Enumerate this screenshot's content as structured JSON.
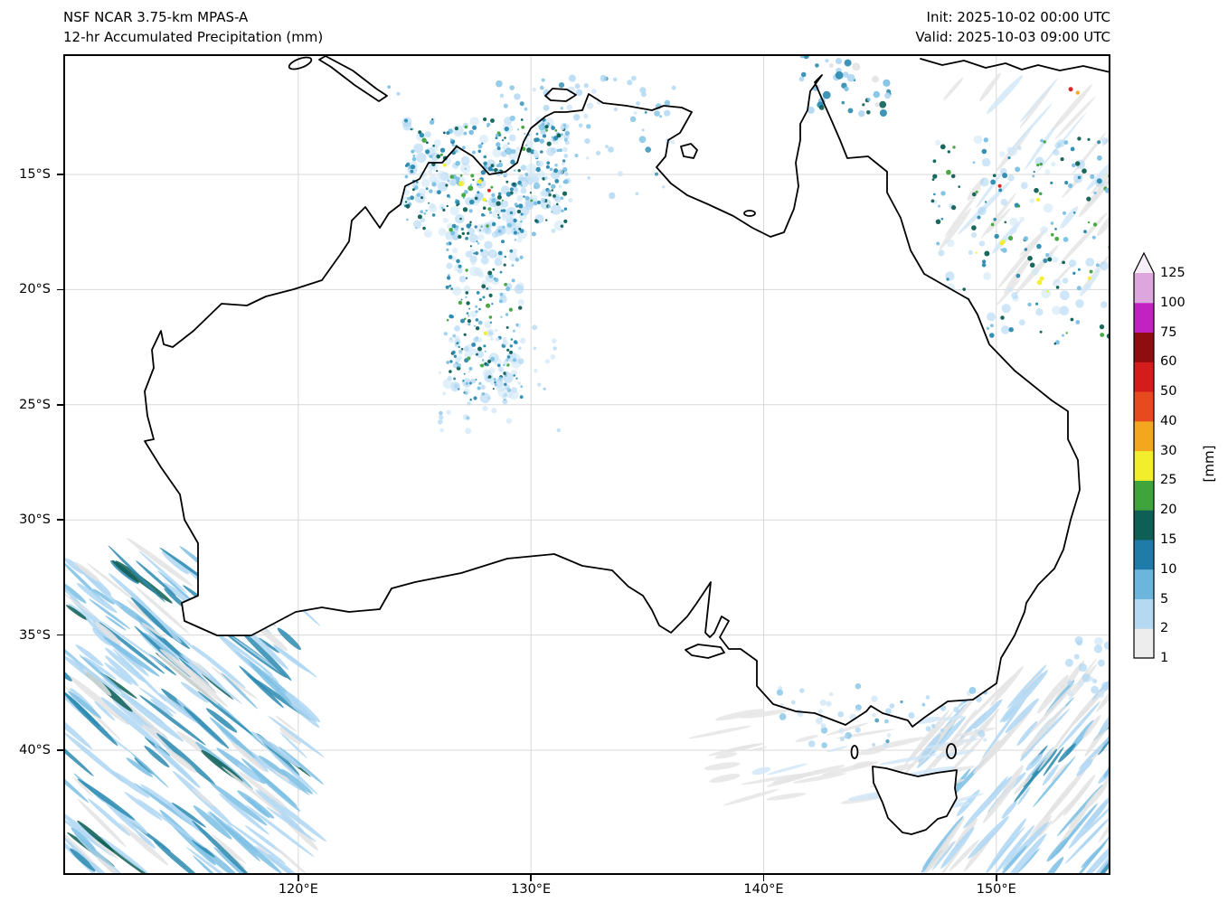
{
  "header": {
    "model": "NSF NCAR 3.75-km MPAS-A",
    "product": "12-hr Accumulated Precipitation (mm)",
    "init": "Init: 2025-10-02 00:00 UTC",
    "valid": "Valid: 2025-10-03 09:00 UTC"
  },
  "axes": {
    "x_ticks": [
      "120°E",
      "130°E",
      "140°E",
      "150°E"
    ],
    "y_ticks": [
      "15°S",
      "20°S",
      "25°S",
      "30°S",
      "35°S",
      "40°S"
    ]
  },
  "colorbar": {
    "unit": "[mm]",
    "levels": [
      1,
      2,
      5,
      10,
      15,
      20,
      25,
      30,
      40,
      50,
      60,
      75,
      100,
      125
    ],
    "colors": [
      "#ededed",
      "#b5d9f0",
      "#6cb5dd",
      "#1f7ba8",
      "#0e5f55",
      "#40a43c",
      "#f2ee2c",
      "#f3a71e",
      "#e84a20",
      "#d41c1c",
      "#8f0c10",
      "#c322c3",
      "#dda6dd"
    ],
    "extend_color": "#f5eef7"
  },
  "chart_data": {
    "type": "heatmap",
    "title": "12-hr Accumulated Precipitation (mm)",
    "model": "NSF NCAR 3.75-km MPAS-A",
    "init_time": "2025-10-02 00:00 UTC",
    "valid_time": "2025-10-03 09:00 UTC",
    "region": "Australia",
    "lon_range_deg_east": [
      109.9,
      154.9
    ],
    "lat_range_deg_south": [
      9.8,
      45.2
    ],
    "x_ticks_deg_east": [
      120,
      130,
      140,
      150
    ],
    "y_ticks_deg_south": [
      15,
      20,
      25,
      30,
      35,
      40
    ],
    "unit": "mm",
    "colormap_levels_mm": [
      1,
      2,
      5,
      10,
      15,
      20,
      25,
      30,
      40,
      50,
      60,
      75,
      100,
      125
    ],
    "colormap_colors": [
      "#ededed",
      "#b5d9f0",
      "#6cb5dd",
      "#1f7ba8",
      "#0e5f55",
      "#40a43c",
      "#f2ee2c",
      "#f3a71e",
      "#e84a20",
      "#d41c1c",
      "#8f0c10",
      "#c322c3",
      "#dda6dd"
    ],
    "extend_above_color": "#f5eef7",
    "grid": true,
    "precip_features": [
      {
        "area": "Southern Ocean southwest of WA",
        "lon": [
          110,
          120
        ],
        "lat": [
          -45,
          -32
        ],
        "character": "SW-NE oriented frontal rain bands",
        "max_mm": 15
      },
      {
        "area": "Kimberley and western Top End",
        "lon": [
          124.5,
          131.5
        ],
        "lat": [
          -12.5,
          -17.5
        ],
        "character": "scattered convective cells, isolated 25-50 mm cores",
        "max_mm": 50
      },
      {
        "area": "Central NT band near 128E",
        "lon": [
          126.5,
          129.5
        ],
        "lat": [
          -17,
          -25
        ],
        "character": "north-south band of scattered light showers",
        "max_mm": 25
      },
      {
        "area": "Arafura Sea / Top End coast",
        "lon": [
          128.5,
          136
        ],
        "lat": [
          -11,
          -16
        ],
        "character": "scattered light showers",
        "max_mm": 10
      },
      {
        "area": "Coral Sea southeast of PNG",
        "lon": [
          147,
          155
        ],
        "lat": [
          -11,
          -22.5
        ],
        "character": "scattered convection with isolated heavy cores",
        "max_mm": 60
      },
      {
        "area": "Torres Strait / Gulf of Papua",
        "lon": [
          141.5,
          145.5
        ],
        "lat": [
          -10,
          -12.5
        ],
        "character": "convective patch",
        "max_mm": 15
      },
      {
        "area": "Bass Strait and Victorian coast",
        "lon": [
          140.5,
          149.5
        ],
        "lat": [
          -37,
          -40
        ],
        "character": "light coastal showers",
        "max_mm": 5
      },
      {
        "area": "Tasman Sea southeast corner",
        "lon": [
          147,
          155
        ],
        "lat": [
          -36.5,
          -45
        ],
        "character": "frontal bands",
        "max_mm": 10
      }
    ],
    "fields": [
      {
        "id": "sw-ocean-streaks",
        "layer": "ocean",
        "type": "streaks",
        "seed": 11,
        "count": 260,
        "lon": [
          109.8,
          120.2
        ],
        "lat": [
          -45.4,
          -31.8
        ],
        "angle": 40,
        "len": [
          14,
          48
        ],
        "op": 0.85,
        "palette": {
          "colors": [
            "#aed6f2",
            "#7cc0e4",
            "#2a8ab0",
            "#0e5f55",
            "#e3e3e3"
          ],
          "weights": [
            40,
            18,
            15,
            7,
            20
          ]
        }
      },
      {
        "id": "se-ocean-streaks",
        "layer": "ocean",
        "type": "streaks",
        "seed": 19,
        "count": 130,
        "lon": [
          147.0,
          155.4
        ],
        "lat": [
          -36.8,
          -45.4
        ],
        "angle": -50,
        "len": [
          12,
          42
        ],
        "op": 0.85,
        "palette": {
          "colors": [
            "#aed6f2",
            "#7cc0e4",
            "#2a8ab0",
            "#e3e3e3"
          ],
          "weights": [
            40,
            14,
            8,
            38
          ]
        }
      },
      {
        "id": "tasman-gray-streaks",
        "layer": "ocean",
        "type": "streaks",
        "seed": 3,
        "count": 48,
        "lon": [
          138.0,
          149.5
        ],
        "lat": [
          -38.4,
          -42.6
        ],
        "angle": -12,
        "len": [
          10,
          36
        ],
        "op": 0.8,
        "palette": {
          "colors": [
            "#e3e3e3",
            "#cfe6f7"
          ],
          "weights": [
            78,
            22
          ]
        }
      },
      {
        "id": "coral-gray-streaks",
        "layer": "ocean",
        "type": "streaks",
        "seed": 41,
        "count": 38,
        "lon": [
          148.0,
          155.4
        ],
        "lat": [
          -11.2,
          -20.5
        ],
        "angle": -50,
        "len": [
          14,
          44
        ],
        "op": 0.8,
        "palette": {
          "colors": [
            "#e3e3e3",
            "#cfe6f7"
          ],
          "weights": [
            82,
            18
          ]
        }
      },
      {
        "id": "kimberley-halo",
        "layer": "land",
        "type": "dots",
        "seed": 7,
        "count": 140,
        "lon": [
          124.6,
          131.6
        ],
        "lat": [
          -12.6,
          -17.6
        ],
        "r": [
          2.5,
          6
        ],
        "op": 0.6,
        "palette": {
          "colors": [
            "#cfe6f7",
            "#aed6f2"
          ],
          "weights": [
            55,
            45
          ]
        }
      },
      {
        "id": "kimberley-cores",
        "layer": "land",
        "type": "dots",
        "seed": 8,
        "count": 270,
        "lon": [
          124.6,
          131.6
        ],
        "lat": [
          -12.6,
          -17.6
        ],
        "r": [
          1,
          2.8
        ],
        "op": 0.95,
        "palette": {
          "colors": [
            "#7cc0e4",
            "#2a8ab0",
            "#0e5f55",
            "#40a43c"
          ],
          "weights": [
            34,
            38,
            22,
            6
          ]
        }
      },
      {
        "id": "arafura-scatter",
        "layer": "land",
        "type": "dots",
        "seed": 5,
        "count": 90,
        "lon": [
          128.6,
          136.2
        ],
        "lat": [
          -10.8,
          -16.2
        ],
        "r": [
          1.5,
          4
        ],
        "op": 0.8,
        "palette": {
          "colors": [
            "#cfe6f7",
            "#aed6f2",
            "#7cc0e4",
            "#2a8ab0"
          ],
          "weights": [
            30,
            40,
            20,
            10
          ]
        }
      },
      {
        "id": "nt-band-halo",
        "layer": "land",
        "type": "dots",
        "seed": 13,
        "count": 90,
        "lon": [
          126.4,
          129.6
        ],
        "lat": [
          -17.2,
          -24.8
        ],
        "r": [
          2.5,
          6
        ],
        "op": 0.6,
        "palette": {
          "colors": [
            "#cfe6f7",
            "#aed6f2"
          ],
          "weights": [
            55,
            45
          ]
        }
      },
      {
        "id": "nt-band-cores",
        "layer": "land",
        "type": "dots",
        "seed": 14,
        "count": 160,
        "lon": [
          126.4,
          129.6
        ],
        "lat": [
          -17.2,
          -24.8
        ],
        "r": [
          1,
          2.6
        ],
        "op": 0.95,
        "palette": {
          "colors": [
            "#7cc0e4",
            "#2a8ab0",
            "#0e5f55",
            "#40a43c"
          ],
          "weights": [
            36,
            38,
            20,
            6
          ]
        }
      },
      {
        "id": "nt-south-scatter",
        "layer": "land",
        "type": "dots",
        "seed": 17,
        "count": 60,
        "lon": [
          126.0,
          131.2
        ],
        "lat": [
          -21.6,
          -26.5
        ],
        "r": [
          1.5,
          3.5
        ],
        "op": 0.7,
        "palette": {
          "colors": [
            "#cfe6f7",
            "#aed6f2",
            "#7cc0e4"
          ],
          "weights": [
            50,
            35,
            15
          ]
        }
      },
      {
        "id": "coral-sea-halo",
        "layer": "ocean",
        "type": "dots",
        "seed": 21,
        "count": 70,
        "lon": [
          147.2,
          155.4
        ],
        "lat": [
          -13.4,
          -22.4
        ],
        "r": [
          2.5,
          5.5
        ],
        "op": 0.6,
        "palette": {
          "colors": [
            "#cfe6f7",
            "#aed6f2"
          ],
          "weights": [
            50,
            50
          ]
        }
      },
      {
        "id": "coral-sea-cores",
        "layer": "ocean",
        "type": "dots",
        "seed": 23,
        "count": 150,
        "lon": [
          147.2,
          155.4
        ],
        "lat": [
          -13.4,
          -22.4
        ],
        "r": [
          1.2,
          3
        ],
        "op": 0.95,
        "palette": {
          "colors": [
            "#7cc0e4",
            "#2a8ab0",
            "#0e5f55",
            "#40a43c",
            "#f2ee2c"
          ],
          "weights": [
            22,
            30,
            22,
            20,
            6
          ]
        }
      },
      {
        "id": "png-gulf-patch",
        "layer": "land",
        "type": "dots",
        "seed": 31,
        "count": 42,
        "lon": [
          141.6,
          145.6
        ],
        "lat": [
          -9.8,
          -12.4
        ],
        "r": [
          1.5,
          4.5
        ],
        "op": 0.9,
        "palette": {
          "colors": [
            "#aed6f2",
            "#7cc0e4",
            "#2a8ab0",
            "#0e5f55",
            "#e3e3e3"
          ],
          "weights": [
            22,
            24,
            26,
            14,
            14
          ]
        }
      },
      {
        "id": "vic-coast-patches",
        "layer": "land",
        "type": "dots",
        "seed": 37,
        "count": 55,
        "lon": [
          140.6,
          149.6
        ],
        "lat": [
          -37.2,
          -39.8
        ],
        "r": [
          1.5,
          4
        ],
        "op": 0.75,
        "palette": {
          "colors": [
            "#cfe6f7",
            "#aed6f2",
            "#7cc0e4",
            "#2a8ab0"
          ],
          "weights": [
            35,
            40,
            18,
            7
          ]
        }
      },
      {
        "id": "tasman-east-patch",
        "layer": "ocean",
        "type": "dots",
        "seed": 43,
        "count": 25,
        "lon": [
          153.0,
          155.4
        ],
        "lat": [
          -35.2,
          -37.6
        ],
        "r": [
          2,
          5
        ],
        "op": 0.7,
        "palette": {
          "colors": [
            "#cfe6f7",
            "#aed6f2"
          ],
          "weights": [
            40,
            60
          ]
        }
      },
      {
        "id": "hotspot-cells",
        "layer": "land",
        "type": "points",
        "points": [
          [
            127.0,
            -15.4,
            "#f2ee2c",
            3.0
          ],
          [
            127.4,
            -15.6,
            "#40a43c",
            3.0
          ],
          [
            127.8,
            -15.3,
            "#f2ee2c",
            2.5
          ],
          [
            128.2,
            -15.7,
            "#d41c1c",
            2.0
          ],
          [
            127.1,
            -15.9,
            "#40a43c",
            2.5
          ],
          [
            128.0,
            -16.1,
            "#f2ee2c",
            2.2
          ],
          [
            126.6,
            -15.1,
            "#40a43c",
            2.2
          ],
          [
            126.3,
            -14.6,
            "#f2ee2c",
            2.0
          ],
          [
            128.15,
            -20.7,
            "#40a43c",
            2.6
          ],
          [
            128.05,
            -21.9,
            "#f2ee2c",
            2.2
          ],
          [
            127.9,
            -23.3,
            "#40a43c",
            2.0
          ],
          [
            153.2,
            -11.3,
            "#d41c1c",
            2.5
          ],
          [
            153.5,
            -11.45,
            "#f3a71e",
            2.2
          ],
          [
            151.8,
            -16.1,
            "#f2ee2c",
            2.2
          ],
          [
            150.15,
            -15.5,
            "#d41c1c",
            2.0
          ],
          [
            152.6,
            -17.8,
            "#40a43c",
            2.4
          ],
          [
            154.0,
            -19.5,
            "#f2ee2c",
            2.0
          ],
          [
            124.3,
            -11.5,
            "#aed6f2",
            2.0
          ],
          [
            123.9,
            -11.2,
            "#7cc0e4",
            1.8
          ]
        ]
      }
    ]
  }
}
